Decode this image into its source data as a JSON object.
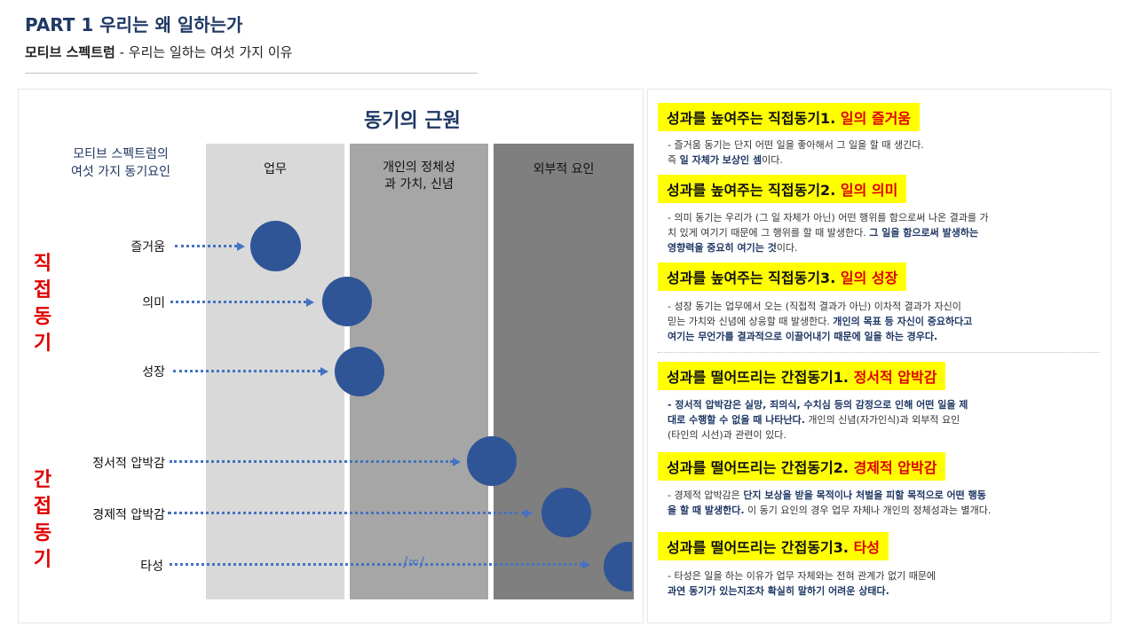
{
  "header": {
    "title": "PART 1 우리는 왜 일하는가",
    "subtitle_bold": "모티브 스펙트럼",
    "subtitle_rest": " - 우리는 일하는 여섯 가지 이유"
  },
  "diagram": {
    "title": "동기의 근원",
    "spectrum_label_1": "모티브 스펙트럼의",
    "spectrum_label_2": "여섯 가지 동기요인",
    "columns": [
      "업무",
      "개인의 정체성",
      "과 가치, 신념",
      "외부적 요인"
    ],
    "group_direct": [
      "직",
      "접",
      "동",
      "기"
    ],
    "group_indirect": [
      "간",
      "접",
      "동",
      "기"
    ],
    "rows": [
      "즐거움",
      "의미",
      "성장",
      "정서적 압박감",
      "경제적 압박감",
      "타성"
    ],
    "infinity_symbol": "/∞/"
  },
  "sections": [
    {
      "title_prefix": "성과를 높여주는 직접동기1. ",
      "title_highlight": "일의 즐거움",
      "body_1": "- 즐거움 동기는 단지 어떤 일을 좋아해서 그 일을 할 때 생긴다.",
      "body_2_pre": "즉 ",
      "body_2_em": "일 자체가 보상인 셈",
      "body_2_post": "이다."
    },
    {
      "title_prefix": "성과를 높여주는 직접동기2. ",
      "title_highlight": "일의 의미",
      "body_1": "- 의미 동기는 우리가 (그 일 자체가 아닌) 어떤 행위를 함으로써 나온 결과를 가",
      "body_2_pre": "치 있게 여기기 때문에 그 행위를 할 때 발생한다. ",
      "body_2_em": "그 일을 함으로써 발생하는",
      "body_3_em": "영향력을 중요히 여기는 것",
      "body_3_post": "이다."
    },
    {
      "title_prefix": "성과를 높여주는 직접동기3. ",
      "title_highlight": "일의 성장",
      "body_1": "- 성장 동기는 업무에서 오는 (직접적 결과가 아닌) 이차적 결과가 자신이",
      "body_2_pre": "믿는 가치와 신념에 상응할 때 발생한다. ",
      "body_2_em": "개인의 목표 등 자신이 중요하다고",
      "body_3_em": "여기는 무언가를 결과적으로 이끌어내기 때문에 일을 하는 경우다."
    },
    {
      "title_prefix": "성과를 떨어뜨리는 간접동기1. ",
      "title_highlight": "정서적 압박감",
      "body_1_em": "- 정서적 압박감은 실망, 죄의식, 수치심 등의 감정으로 인해 어떤 일을 제",
      "body_2_em": "대로 수행할 수 없을 때 나타난다.",
      "body_2_post": " 개인의 신념(자가인식)과 외부적 요인",
      "body_3": "(타인의 시선)과 관련이 있다."
    },
    {
      "title_prefix": "성과를 떨어뜨리는 간접동기2. ",
      "title_highlight": "경제적 압박감",
      "body_1_pre": "- 경제적 압박감은 ",
      "body_1_em": "단지 보상을 받을 목적이나 처벌을 피할 목적으로 어떤 행동",
      "body_2_em": "을 할 때 발생한다.",
      "body_2_post": " 이 동기 요인의 경우 업무 자체나 개인의 정체성과는 별개다."
    },
    {
      "title_prefix": "성과를 떨어뜨리는 간접동기3. ",
      "title_highlight": "타성",
      "body_1": "- 타성은 일을 하는 이유가 업무 자체와는 전혀 관계가 없기 때문에",
      "body_2_em": "과연 동기가 있는지조차 확실히 말하기 어려운 상태다."
    }
  ],
  "colors": {
    "navy": "#1f3864",
    "accent_red": "#e00000",
    "highlight_yellow": "#ffff00",
    "arrow_blue": "#4472c4",
    "dot_blue": "#2f5597"
  }
}
